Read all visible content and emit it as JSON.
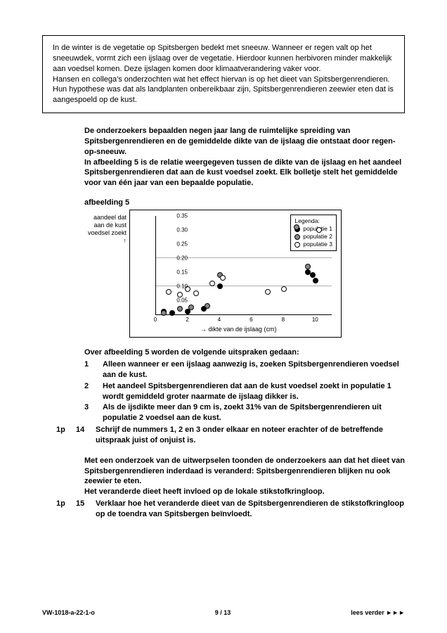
{
  "intro": "In de winter is de vegetatie op Spitsbergen bedekt met sneeuw. Wanneer er regen valt op het sneeuwdek, vormt zich een ijslaag over de vegetatie. Hierdoor kunnen herbivoren minder makkelijk aan voedsel komen. Deze ijslagen komen door klimaatverandering vaker voor.\nHansen en collega's onderzochten wat het effect hiervan is op het dieet van Spitsbergenrendieren. Hun hypothese was dat als landplanten onbereikbaar zijn, Spitsbergenrendieren zeewier eten dat is aangespoeld op de kust.",
  "body1": "De onderzoekers bepaalden negen jaar lang de ruimtelijke spreiding van Spitsbergenrendieren en de gemiddelde dikte van de ijslaag die ontstaat door regen-op-sneeuw.\nIn afbeelding 5 is de relatie weergegeven tussen de dikte van de ijslaag en het aandeel Spitsbergenrendieren dat aan de kust voedsel zoekt. Elk bolletje stelt het gemiddelde voor van één jaar van een bepaalde populatie.",
  "fig_label": "afbeelding 5",
  "chart": {
    "type": "scatter",
    "ylabel": "aandeel dat aan de kust voedsel zoekt",
    "xlabel": "→ dikte van de ijslaag (cm)",
    "yticks": [
      "0.05",
      "0.10",
      "0.15",
      "0.20",
      "0.25",
      "0.30",
      "0.35"
    ],
    "xticks": [
      "0",
      "2",
      "4",
      "6",
      "8",
      "10"
    ],
    "xlim": [
      0,
      11
    ],
    "ylim": [
      0,
      0.35
    ],
    "legend_title": "Legenda:",
    "legend": [
      {
        "label": "populatie 1",
        "fill": "m-filled"
      },
      {
        "label": "populatie 2",
        "fill": "m-gray"
      },
      {
        "label": "populatie 3",
        "fill": "m-open"
      }
    ],
    "gridlines_y": [
      0.1,
      0.2
    ],
    "points": [
      {
        "x": 0.5,
        "y": 0.01,
        "s": "m-filled"
      },
      {
        "x": 1.0,
        "y": 0.005,
        "s": "m-filled"
      },
      {
        "x": 2.0,
        "y": 0.01,
        "s": "m-filled"
      },
      {
        "x": 3.0,
        "y": 0.02,
        "s": "m-filled"
      },
      {
        "x": 4.0,
        "y": 0.1,
        "s": "m-filled"
      },
      {
        "x": 9.5,
        "y": 0.15,
        "s": "m-filled"
      },
      {
        "x": 9.8,
        "y": 0.14,
        "s": "m-filled"
      },
      {
        "x": 10.0,
        "y": 0.12,
        "s": "m-filled"
      },
      {
        "x": 0.5,
        "y": 0.005,
        "s": "m-gray"
      },
      {
        "x": 1.5,
        "y": 0.02,
        "s": "m-gray"
      },
      {
        "x": 2.2,
        "y": 0.025,
        "s": "m-gray"
      },
      {
        "x": 3.2,
        "y": 0.03,
        "s": "m-gray"
      },
      {
        "x": 4.0,
        "y": 0.14,
        "s": "m-gray"
      },
      {
        "x": 8.8,
        "y": 0.31,
        "s": "m-gray"
      },
      {
        "x": 9.5,
        "y": 0.17,
        "s": "m-gray"
      },
      {
        "x": 0.8,
        "y": 0.08,
        "s": "m-open"
      },
      {
        "x": 1.5,
        "y": 0.07,
        "s": "m-open"
      },
      {
        "x": 2.0,
        "y": 0.09,
        "s": "m-open"
      },
      {
        "x": 2.5,
        "y": 0.075,
        "s": "m-open"
      },
      {
        "x": 3.5,
        "y": 0.11,
        "s": "m-open"
      },
      {
        "x": 4.2,
        "y": 0.13,
        "s": "m-open"
      },
      {
        "x": 7.0,
        "y": 0.08,
        "s": "m-open"
      },
      {
        "x": 8.0,
        "y": 0.09,
        "s": "m-open"
      },
      {
        "x": 10.2,
        "y": 0.3,
        "s": "m-open"
      }
    ]
  },
  "statements_intro": "Over afbeelding 5 worden de volgende uitspraken gedaan:",
  "statements": [
    {
      "n": "1",
      "t": "Alleen wanneer er een ijslaag aanwezig is, zoeken Spitsbergenrendieren voedsel aan de kust."
    },
    {
      "n": "2",
      "t": "Het aandeel Spitsbergenrendieren dat aan de kust voedsel zoekt in populatie 1 wordt gemiddeld groter naarmate de ijslaag dikker is."
    },
    {
      "n": "3",
      "t": "Als de ijsdikte meer dan 9 cm is, zoekt 31% van de Spitsbergenrendieren uit populatie 2 voedsel aan de kust."
    }
  ],
  "q14": {
    "points": "1p",
    "num": "14",
    "text": "Schrijf de nummers 1, 2 en 3 onder elkaar en noteer erachter of de betreffende uitspraak juist of onjuist is."
  },
  "para2": "Met een onderzoek van de uitwerpselen toonden de onderzoekers aan dat het dieet van Spitsbergenrendieren inderdaad is veranderd: Spitsbergenrendieren blijken nu ook zeewier te eten.\nHet veranderde dieet heeft invloed op de lokale stikstofkringloop.",
  "q15": {
    "points": "1p",
    "num": "15",
    "text": "Verklaar hoe het veranderde dieet van de Spitsbergenrendieren de stikstofkringloop op de toendra van Spitsbergen beïnvloedt."
  },
  "footer": {
    "left": "VW-1018-a-22-1-o",
    "center": "9 / 13",
    "right": "lees verder ►►►"
  }
}
